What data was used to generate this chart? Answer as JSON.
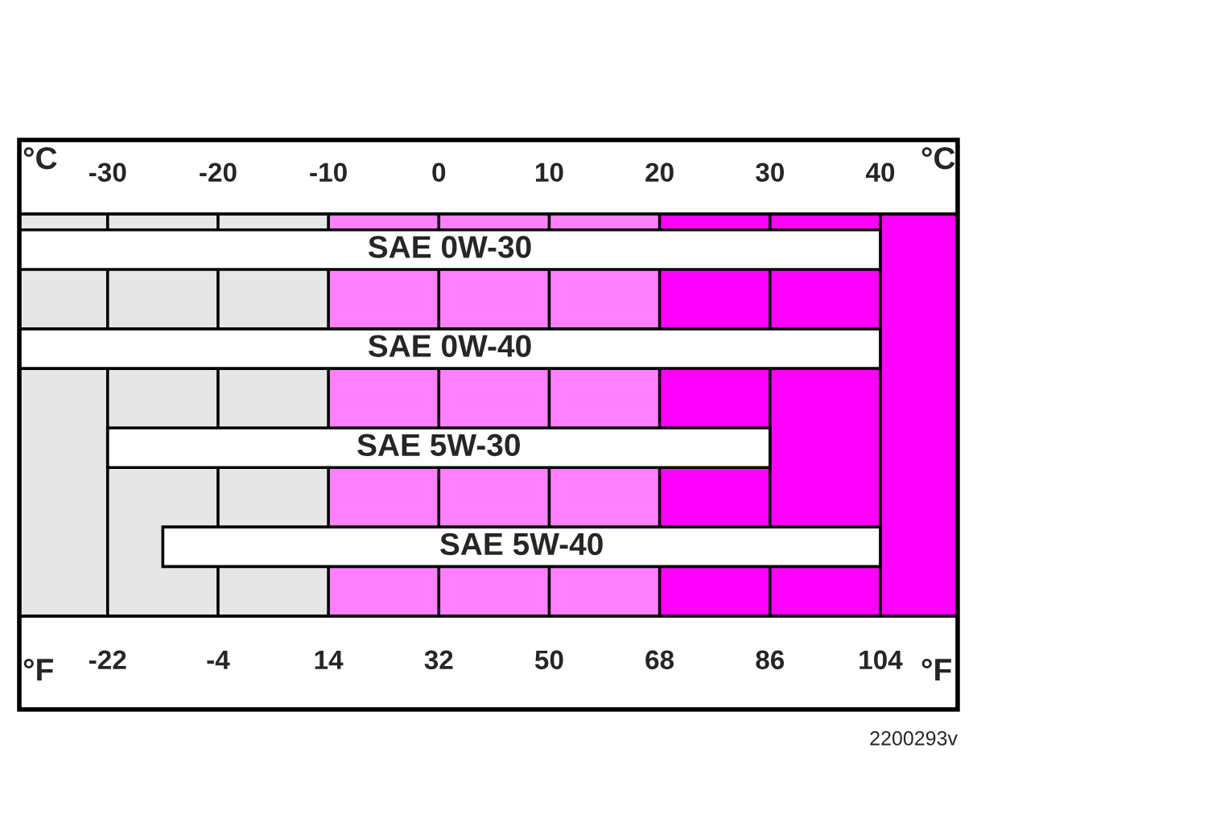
{
  "chart_data": {
    "type": "bar",
    "orientation": "horizontal",
    "categories": [
      "SAE 0W-30",
      "SAE 0W-40",
      "SAE 5W-30",
      "SAE 5W-40"
    ],
    "base": [
      -36.4,
      -36.4,
      -22,
      -13
    ],
    "values": [
      140.4,
      140.4,
      108,
      117
    ],
    "color": "#ffffff",
    "xlim": [
      -36.4,
      116.6
    ],
    "xticks": [
      -22,
      -4,
      14,
      32,
      50,
      68,
      86,
      104
    ],
    "x2lim": [
      -38,
      47
    ],
    "x2ticks": [
      -30,
      -20,
      -10,
      0,
      10,
      20,
      30,
      40
    ],
    "bands": [
      {
        "axis": "x",
        "from": -36.4,
        "to": 14,
        "color": "#e6e6e6"
      },
      {
        "axis": "x",
        "from": 14,
        "to": 68,
        "color": "#ff80ff"
      },
      {
        "axis": "x",
        "from": 68,
        "to": 116.6,
        "color": "#ff00ff"
      }
    ],
    "grid": "x",
    "tick_labels": "x",
    "annotations": [
      "°C",
      "°C",
      "°F",
      "°F",
      "2200293v"
    ]
  }
}
